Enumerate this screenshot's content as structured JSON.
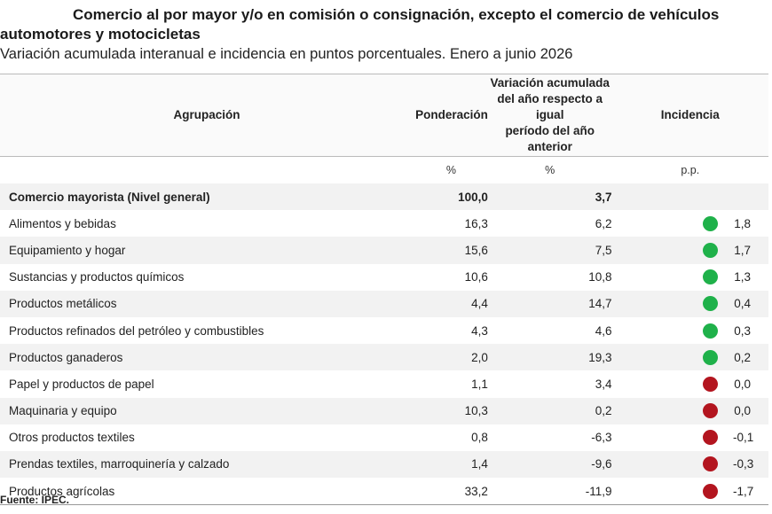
{
  "title_line1": "Comercio al por mayor y/o en comisión o consignación, excepto el comercio de vehículos",
  "title_line2": "automotores y motocicletas",
  "subtitle": "Variación acumulada interanual e incidencia en puntos porcentuales. Enero a junio 2026",
  "headers": {
    "agrupacion": "Agrupación",
    "ponderacion": "Ponderación",
    "variacion_l1": "Variación acumulada",
    "variacion_l2": "del año respecto a igual",
    "variacion_l3": "período del año anterior",
    "incidencia": "Incidencia"
  },
  "units": {
    "ponderacion": "%",
    "variacion": "%",
    "incidencia": "p.p."
  },
  "rows": [
    {
      "name": "Comercio mayorista (Nivel general)",
      "pond": "100,0",
      "var": "3,7",
      "inc": "",
      "color": ""
    },
    {
      "name": "Alimentos y bebidas",
      "pond": "16,3",
      "var": "6,2",
      "inc": "1,8",
      "color": "#1fb14a"
    },
    {
      "name": "Equipamiento y hogar",
      "pond": "15,6",
      "var": "7,5",
      "inc": "1,7",
      "color": "#1fb14a"
    },
    {
      "name": "Sustancias y productos químicos",
      "pond": "10,6",
      "var": "10,8",
      "inc": "1,3",
      "color": "#1fb14a"
    },
    {
      "name": "Productos metálicos",
      "pond": "4,4",
      "var": "14,7",
      "inc": "0,4",
      "color": "#1fb14a"
    },
    {
      "name": "Productos refinados del petróleo y combustibles",
      "pond": "4,3",
      "var": "4,6",
      "inc": "0,3",
      "color": "#1fb14a"
    },
    {
      "name": "Productos ganaderos",
      "pond": "2,0",
      "var": "19,3",
      "inc": "0,2",
      "color": "#1fb14a"
    },
    {
      "name": "Papel y productos de papel",
      "pond": "1,1",
      "var": "3,4",
      "inc": "0,0",
      "color": "#b3151f"
    },
    {
      "name": "Maquinaria y equipo",
      "pond": "10,3",
      "var": "0,2",
      "inc": "0,0",
      "color": "#b3151f"
    },
    {
      "name": "Otros productos textiles",
      "pond": "0,8",
      "var": "-6,3",
      "inc": "-0,1",
      "color": "#b3151f"
    },
    {
      "name": "Prendas textiles, marroquinería y calzado",
      "pond": "1,4",
      "var": "-9,6",
      "inc": "-0,3",
      "color": "#b3151f"
    },
    {
      "name": "Productos agrícolas",
      "pond": "33,2",
      "var": "-11,9",
      "inc": "-1,7",
      "color": "#b3151f"
    }
  ],
  "source": "Fuente: IPEC."
}
